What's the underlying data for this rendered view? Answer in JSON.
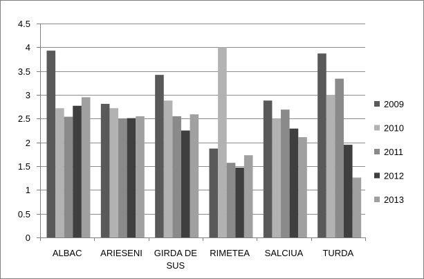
{
  "chart_data": {
    "type": "bar",
    "title": "",
    "xlabel": "",
    "ylabel": "",
    "categories": [
      "ALBAC",
      "ARIESENI",
      "GIRDA DE SUS",
      "RIMETEA",
      "SALCIUA",
      "TURDA"
    ],
    "series": [
      {
        "name": "2009",
        "color": "#595959",
        "values": [
          3.93,
          2.81,
          3.42,
          1.87,
          2.88,
          3.87
        ]
      },
      {
        "name": "2010",
        "color": "#b2b2b2",
        "values": [
          2.72,
          2.72,
          2.88,
          4.0,
          2.5,
          3.0
        ]
      },
      {
        "name": "2011",
        "color": "#8a8a8a",
        "values": [
          2.54,
          2.49,
          2.55,
          1.57,
          2.69,
          3.34
        ]
      },
      {
        "name": "2012",
        "color": "#3f3f3f",
        "values": [
          2.77,
          2.51,
          2.25,
          1.47,
          2.29,
          1.95
        ]
      },
      {
        "name": "2013",
        "color": "#a0a0a0",
        "values": [
          2.95,
          2.55,
          2.59,
          1.73,
          2.11,
          1.26
        ]
      }
    ],
    "ylim": [
      0,
      4.5
    ],
    "yticks": [
      "0",
      "0.5",
      "1",
      "1.5",
      "2",
      "2.5",
      "3",
      "3.5",
      "4",
      "4.5"
    ],
    "grid": true,
    "legend_position": "right"
  }
}
